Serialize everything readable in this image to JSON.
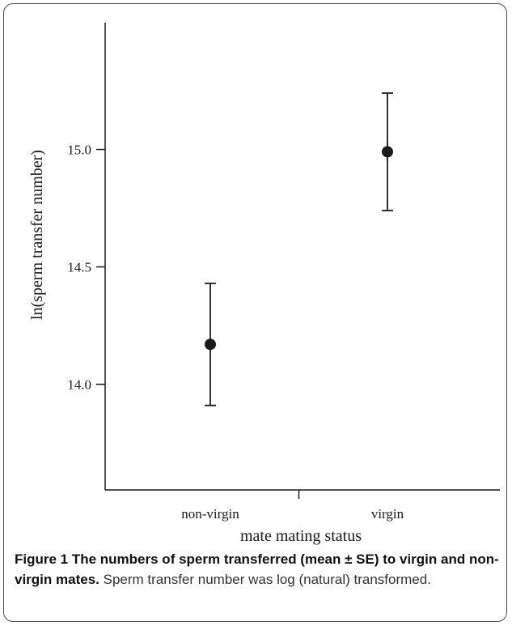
{
  "chart_data": {
    "type": "scatter",
    "categories": [
      "non-virgin",
      "virgin"
    ],
    "series": [
      {
        "values": [
          14.17,
          14.99
        ],
        "error_low": [
          13.91,
          14.74
        ],
        "error_high": [
          14.43,
          15.24
        ]
      }
    ],
    "yticks": [
      "14.0",
      "14.5",
      "15.0"
    ],
    "ytick_values": [
      14.0,
      14.5,
      15.0
    ],
    "xlabel": "mate mating status",
    "ylabel": "ln(sperm transfer number)",
    "ylim": [
      13.55,
      15.54
    ],
    "grid": false
  },
  "caption": {
    "bold": "Figure 1 The numbers of sperm transferred (mean ± SE) to virgin and non-virgin mates.",
    "text": "Sperm transfer number was log (natural) transformed."
  },
  "colors": {
    "marker": "#1a1a1a",
    "frame": "#4a4a4a"
  }
}
